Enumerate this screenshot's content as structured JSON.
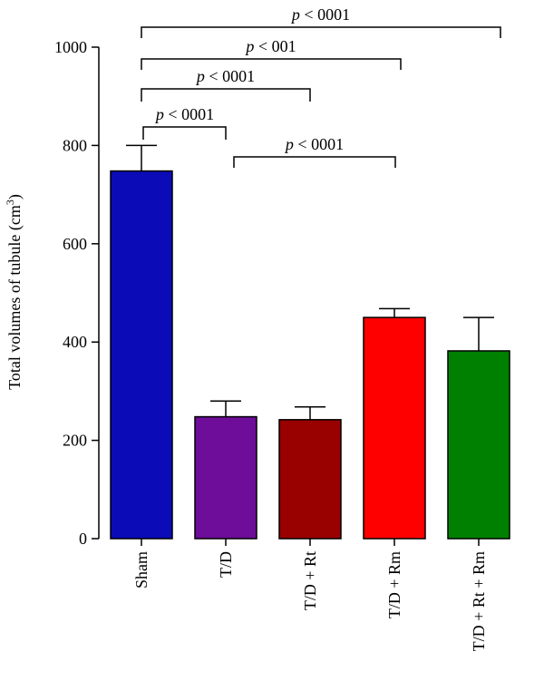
{
  "chart_data": {
    "type": "bar",
    "ylabel_main": "Total volumes of tubule (cm",
    "ylabel_sup": "3",
    "ylabel_close": ")",
    "ylim": [
      0,
      1000
    ],
    "yticks": [
      0,
      200,
      400,
      600,
      800,
      1000
    ],
    "grid": false,
    "categories": [
      "Sham",
      "T/D",
      "T/D + Rt",
      "T/D + Rm",
      "T/D + Rt + Rm"
    ],
    "values": [
      748,
      248,
      242,
      450,
      382
    ],
    "errors": [
      52,
      32,
      26,
      18,
      68
    ],
    "colors": [
      "#0B0BB8",
      "#6E0D99",
      "#990000",
      "#FF0000",
      "#008000"
    ],
    "comparisons": [
      {
        "from": 0,
        "to": 1,
        "label": "p < 0001"
      },
      {
        "from": 1,
        "to": 3,
        "label": "p < 0001"
      },
      {
        "from": 0,
        "to": 2,
        "label": "p < 0001"
      },
      {
        "from": 0,
        "to": 3,
        "label": "p < 001"
      },
      {
        "from": 0,
        "to": 4,
        "label": "p < 0001"
      }
    ]
  }
}
